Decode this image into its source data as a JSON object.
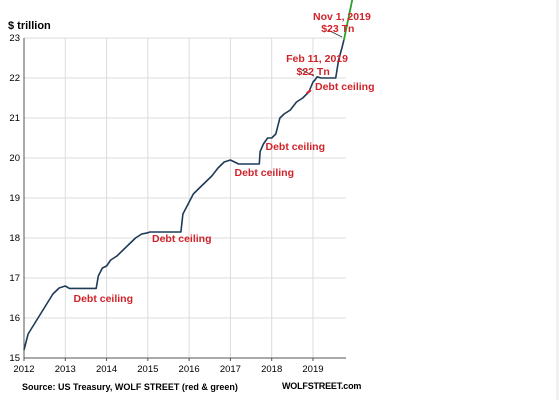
{
  "chart_data": {
    "type": "line",
    "ylabel": "$ trillion",
    "ylim": [
      15,
      23
    ],
    "xlim": [
      2012,
      2019.8
    ],
    "x_ticks": [
      "2012",
      "2013",
      "2014",
      "2015",
      "2016",
      "2017",
      "2018",
      "2019"
    ],
    "y_ticks": [
      "15",
      "16",
      "17",
      "18",
      "19",
      "20",
      "21",
      "22",
      "23"
    ],
    "colors": {
      "main": "#1f3b57",
      "recent_red": "#d0232a",
      "projection_green": "#2ca02c"
    },
    "series": [
      {
        "x": [
          2012.0,
          2012.1,
          2012.25,
          2012.4,
          2012.55,
          2012.7,
          2012.85,
          2013.0,
          2013.1,
          2013.2,
          2013.35,
          2013.45,
          2013.6,
          2013.75,
          2013.8,
          2013.9,
          2014.0,
          2014.1,
          2014.25,
          2014.4,
          2014.55,
          2014.7,
          2014.85,
          2015.0,
          2015.05,
          2015.2,
          2015.4,
          2015.6,
          2015.8,
          2015.85,
          2015.95,
          2016.1,
          2016.25,
          2016.4,
          2016.55,
          2016.7,
          2016.85,
          2017.0,
          2017.1,
          2017.2,
          2017.3,
          2017.4,
          2017.55,
          2017.7,
          2017.72,
          2017.8,
          2017.9,
          2018.0,
          2018.1,
          2018.2,
          2018.3,
          2018.45,
          2018.6,
          2018.75,
          2018.9,
          2019.0,
          2019.05,
          2019.1,
          2019.2,
          2019.4,
          2019.5,
          2019.55,
          2019.62,
          2019.7,
          2019.75
        ],
        "values": [
          15.2,
          15.6,
          15.85,
          16.1,
          16.35,
          16.6,
          16.75,
          16.8,
          16.74,
          16.74,
          16.74,
          16.74,
          16.74,
          16.74,
          17.05,
          17.25,
          17.3,
          17.45,
          17.55,
          17.7,
          17.85,
          18.0,
          18.1,
          18.13,
          18.15,
          18.15,
          18.15,
          18.15,
          18.15,
          18.6,
          18.8,
          19.1,
          19.25,
          19.4,
          19.55,
          19.75,
          19.9,
          19.95,
          19.9,
          19.85,
          19.85,
          19.85,
          19.85,
          19.85,
          20.16,
          20.35,
          20.5,
          20.5,
          20.6,
          21.0,
          21.1,
          21.2,
          21.4,
          21.5,
          21.65,
          21.9,
          21.95,
          22.03,
          22.0,
          22.0,
          22.0,
          22.0,
          22.45,
          22.75,
          22.95
        ]
      },
      {
        "name": "red",
        "x": [
          2018.85,
          2018.95
        ],
        "values": [
          21.62,
          21.7
        ]
      },
      {
        "name": "green",
        "x": [
          2019.75,
          2020.0
        ],
        "values": [
          22.95,
          24.2
        ]
      }
    ],
    "annotations": [
      {
        "text": "Debt ceiling",
        "x": 2013.2,
        "y": 16.45
      },
      {
        "text": "Debt ceiling",
        "x": 2015.1,
        "y": 17.95
      },
      {
        "text": "Debt ceiling",
        "x": 2017.1,
        "y": 19.6
      },
      {
        "text": "Debt ceiling",
        "x": 2017.85,
        "y": 20.25
      },
      {
        "text": "Debt ceiling",
        "x": 2019.05,
        "y": 21.75
      },
      {
        "text": "Feb 11, 2019",
        "x": 2018.35,
        "y": 22.45
      },
      {
        "text": "$22 Tn",
        "x": 2018.6,
        "y": 22.12
      },
      {
        "text": "Nov 1, 2019",
        "x": 2019.0,
        "y": 23.5
      },
      {
        "text": "$23 Tn",
        "x": 2019.2,
        "y": 23.2
      }
    ]
  },
  "footer": {
    "source": "Source: US Treasury, WOLF STREET (red & green)",
    "brand": "WOLFSTREET.com"
  }
}
